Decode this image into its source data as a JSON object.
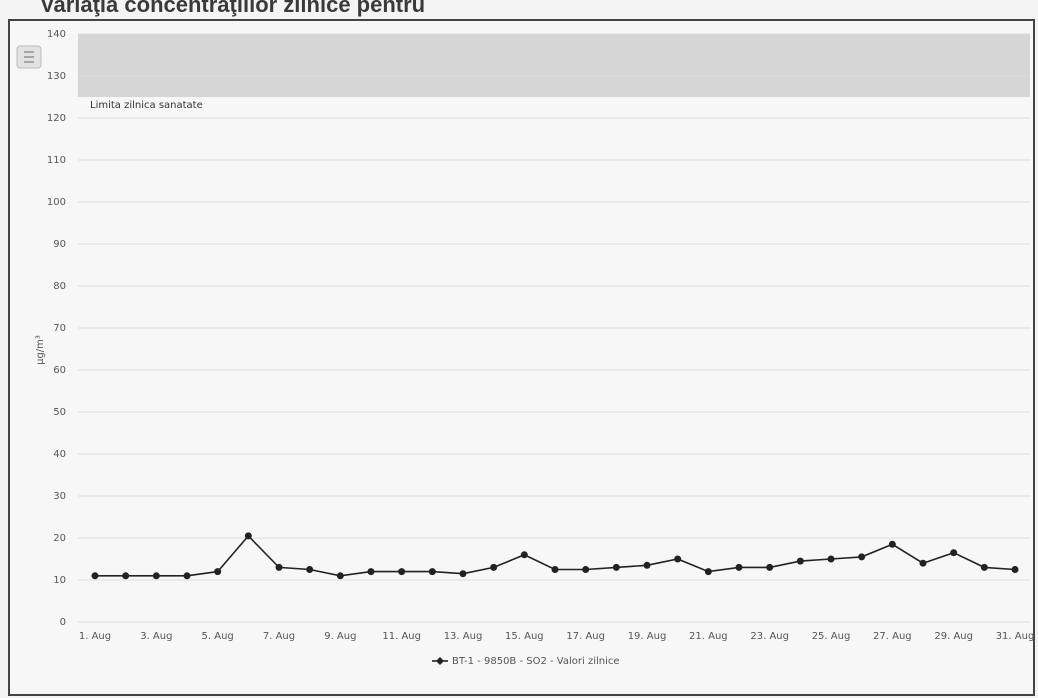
{
  "chart_data": {
    "type": "line",
    "title": "Variaţia concentraţiilor zilnice pentru",
    "y_label": "µg/m³",
    "categories": [
      "1. Aug",
      null,
      "3. Aug",
      null,
      "5. Aug",
      null,
      "7. Aug",
      null,
      "9. Aug",
      null,
      "11. Aug",
      null,
      "13. Aug",
      null,
      "15. Aug",
      null,
      "17. Aug",
      null,
      "19. Aug",
      null,
      "21. Aug",
      null,
      "23. Aug",
      null,
      "25. Aug",
      null,
      "27. Aug",
      null,
      "29. Aug",
      null,
      "31. Aug"
    ],
    "series": [
      {
        "name": "BT-1 - 9850B - SO2 - Valori zilnice",
        "color": "#222222",
        "values": [
          11,
          11,
          11,
          11,
          12,
          20.5,
          13,
          12.5,
          11,
          12,
          12,
          12,
          11.5,
          13,
          16,
          12.5,
          12.5,
          13,
          13.5,
          15,
          12,
          13,
          13,
          14.5,
          15,
          15.5,
          18.5,
          14,
          16.5,
          13,
          12.5
        ]
      }
    ],
    "plot_band": {
      "from": 125,
      "to": 140,
      "label": "Limita zilnica sanatate",
      "color": "#d6d6d6"
    },
    "ylim": [
      0,
      140
    ],
    "yticks": [
      0,
      10,
      20,
      30,
      40,
      50,
      60,
      70,
      80,
      90,
      100,
      110,
      120,
      130,
      140
    ],
    "grid": true
  }
}
